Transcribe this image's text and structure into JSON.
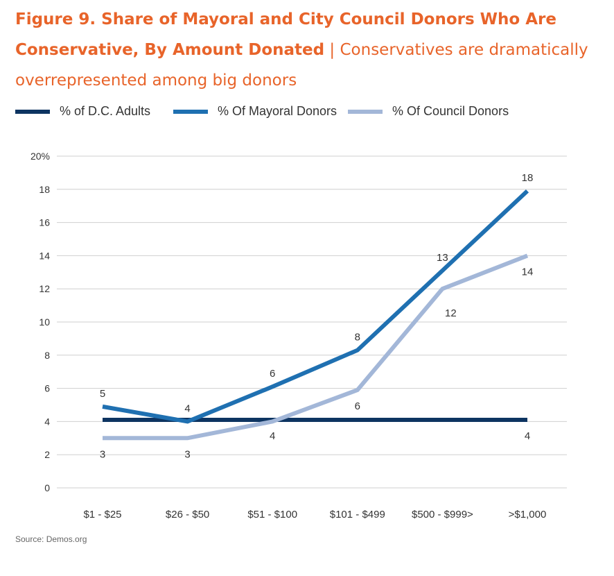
{
  "title": {
    "bold": "Figure 9. Share of Mayoral and City Council Donors Who Are Conservative, By Amount Donated",
    "separator": "|",
    "subtitle": "Conservatives are dramatically overrepresented among big donors"
  },
  "source": "Source: Demos.org",
  "chart_data": {
    "type": "line",
    "categories": [
      "$1 - $25",
      "$26 - $50",
      "$51 - $100",
      "$101 - $499",
      "$500 - $999>",
      ">$1,000"
    ],
    "y_ticks": [
      "0",
      "2",
      "4",
      "6",
      "8",
      "10",
      "12",
      "14",
      "16",
      "18",
      "20%"
    ],
    "ylim": [
      0,
      20
    ],
    "grid": true,
    "legend_position": "top",
    "series": [
      {
        "name": "% of D.C. Adults",
        "color": "#0d3461",
        "values": [
          4.1,
          4.1,
          4.1,
          4.1,
          4.1,
          4.1
        ],
        "labels": [
          "",
          "",
          "4",
          "",
          "",
          "4"
        ]
      },
      {
        "name": "% Of Mayoral Donors",
        "color": "#1f70b1",
        "values": [
          4.9,
          4.0,
          6.1,
          8.3,
          13.1,
          17.9
        ],
        "labels": [
          "5",
          "4",
          "6",
          "8",
          "13",
          "18"
        ]
      },
      {
        "name": "% Of Council Donors",
        "color": "#a3b7d8",
        "values": [
          3.0,
          3.0,
          4.0,
          5.9,
          12.0,
          14.0
        ],
        "labels": [
          "3",
          "3",
          "",
          "6",
          "12",
          "14"
        ]
      }
    ]
  }
}
